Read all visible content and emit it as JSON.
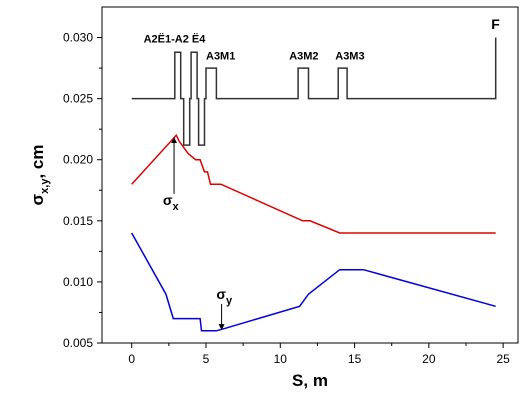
{
  "chart_data": {
    "type": "line",
    "title": "",
    "xlabel": "S, m",
    "ylabel": {
      "base": "σ",
      "sub": "x,y",
      "unit": ", cm"
    },
    "xlim": [
      -2,
      26
    ],
    "ylim": [
      0.005,
      0.0325
    ],
    "x_ticks": [
      0,
      5,
      10,
      15,
      20,
      25
    ],
    "y_ticks": [
      0.005,
      0.01,
      0.015,
      0.02,
      0.025,
      0.03
    ],
    "x_tick_labels": [
      "0",
      "5",
      "10",
      "15",
      "20",
      "25"
    ],
    "y_tick_labels": [
      "0.005",
      "0.010",
      "0.015",
      "0.020",
      "0.025",
      "0.030"
    ],
    "grid": false,
    "series": [
      {
        "key": "sigma_x",
        "color": "#e00000",
        "x": [
          0,
          3.0,
          3.2,
          3.8,
          4.3,
          4.6,
          4.9,
          5.1,
          5.3,
          6.0,
          11.5,
          12.0,
          14.0,
          24.5
        ],
        "y": [
          0.018,
          0.022,
          0.0215,
          0.0205,
          0.02,
          0.02,
          0.019,
          0.019,
          0.018,
          0.018,
          0.015,
          0.015,
          0.014,
          0.014
        ]
      },
      {
        "key": "sigma_y",
        "color": "#0000e0",
        "x": [
          0,
          2.3,
          2.8,
          4.6,
          4.7,
          5.7,
          6.3,
          11.3,
          11.9,
          14.0,
          15.6,
          24.5
        ],
        "y": [
          0.014,
          0.009,
          0.007,
          0.007,
          0.006,
          0.006,
          0.0062,
          0.008,
          0.009,
          0.011,
          0.011,
          0.008
        ]
      },
      {
        "key": "lattice",
        "color": "#333333",
        "x": [
          0,
          2.9,
          2.9,
          3.3,
          3.3,
          3.5,
          3.5,
          3.9,
          3.9,
          4.0,
          4.0,
          4.4,
          4.4,
          4.5,
          4.5,
          4.9,
          4.9,
          5.0,
          5.0,
          5.7,
          5.7,
          11.2,
          11.2,
          11.9,
          11.9,
          13.9,
          13.9,
          14.5,
          14.5,
          24.5,
          24.5
        ],
        "y": [
          0.025,
          0.025,
          0.0288,
          0.0288,
          0.025,
          0.025,
          0.0212,
          0.0212,
          0.025,
          0.025,
          0.0288,
          0.0288,
          0.025,
          0.025,
          0.0212,
          0.0212,
          0.025,
          0.025,
          0.0275,
          0.0275,
          0.025,
          0.025,
          0.0275,
          0.0275,
          0.025,
          0.025,
          0.0275,
          0.0275,
          0.025,
          0.025,
          0.03
        ]
      }
    ],
    "element_labels": [
      {
        "text": "А2Ё1-А2 Ё4",
        "x": 0.8,
        "y": 0.0296
      },
      {
        "text": "А3М1",
        "x": 5.0,
        "y": 0.0282
      },
      {
        "text": "А3М2",
        "x": 10.6,
        "y": 0.0282
      },
      {
        "text": "А3М3",
        "x": 13.7,
        "y": 0.0282
      },
      {
        "text": "F",
        "x": 24.2,
        "y": 0.0307
      }
    ],
    "annotations": [
      {
        "key": "sx",
        "base": "σ",
        "sub": "x",
        "text_x": 2.1,
        "text_y": 0.0163,
        "arrow_from": [
          2.85,
          0.0172
        ],
        "arrow_to": [
          2.85,
          0.0218
        ]
      },
      {
        "key": "sy",
        "base": "σ",
        "sub": "y",
        "text_x": 5.7,
        "text_y": 0.0086,
        "arrow_from": [
          6.05,
          0.0082
        ],
        "arrow_to": [
          6.05,
          0.0061
        ]
      }
    ]
  }
}
